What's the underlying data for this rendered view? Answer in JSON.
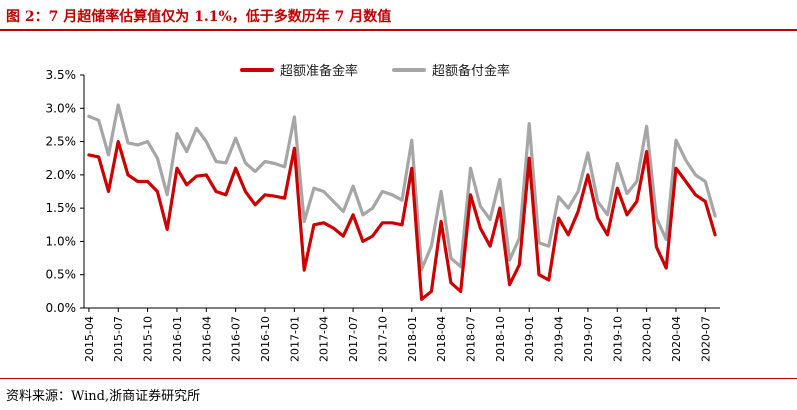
{
  "title": "图 2：7 月超储率估算值仅为 1.1%，低于多数历年 7 月数值",
  "source": "资料来源：Wind,浙商证券研究所",
  "colors": {
    "accent": "#c00000",
    "series_red": "#cc0000",
    "series_gray": "#a6a6a6"
  },
  "chart_data": {
    "type": "line",
    "ylim": [
      0,
      3.5
    ],
    "yticks": [
      "0.0%",
      "0.5%",
      "1.0%",
      "1.5%",
      "2.0%",
      "2.5%",
      "3.0%",
      "3.5%"
    ],
    "ytick_values": [
      0,
      0.5,
      1.0,
      1.5,
      2.0,
      2.5,
      3.0,
      3.5
    ],
    "xtick_labels": [
      "2015-04",
      "2015-07",
      "2015-10",
      "2016-01",
      "2016-04",
      "2016-07",
      "2016-10",
      "2017-01",
      "2017-04",
      "2017-07",
      "2017-10",
      "2018-01",
      "2018-04",
      "2018-07",
      "2018-10",
      "2019-01",
      "2019-04",
      "2019-07",
      "2019-10",
      "2020-01",
      "2020-04",
      "2020-07"
    ],
    "series": [
      {
        "name": "超额准备金率",
        "values": [
          2.3,
          2.27,
          1.75,
          2.5,
          2.0,
          1.9,
          1.9,
          1.75,
          1.18,
          2.1,
          1.85,
          1.98,
          2.0,
          1.75,
          1.7,
          2.1,
          1.75,
          1.55,
          1.7,
          1.68,
          1.65,
          2.4,
          0.57,
          1.25,
          1.28,
          1.2,
          1.08,
          1.4,
          1.0,
          1.08,
          1.28,
          1.28,
          1.25,
          2.1,
          0.13,
          0.25,
          1.3,
          0.38,
          0.25,
          1.7,
          1.2,
          0.93,
          1.5,
          0.35,
          0.65,
          2.25,
          0.5,
          0.42,
          1.35,
          1.1,
          1.45,
          2.0,
          1.35,
          1.1,
          1.8,
          1.4,
          1.6,
          2.35,
          0.92,
          0.6,
          2.1,
          1.9,
          1.7,
          1.6,
          1.1
        ]
      },
      {
        "name": "超额备付金率",
        "values": [
          2.88,
          2.82,
          2.3,
          3.05,
          2.48,
          2.45,
          2.5,
          2.25,
          1.7,
          2.62,
          2.35,
          2.7,
          2.5,
          2.2,
          2.18,
          2.55,
          2.18,
          2.05,
          2.2,
          2.17,
          2.12,
          2.87,
          1.3,
          1.8,
          1.75,
          1.6,
          1.45,
          1.83,
          1.4,
          1.5,
          1.75,
          1.7,
          1.62,
          2.52,
          0.58,
          0.93,
          1.75,
          0.75,
          0.62,
          2.1,
          1.53,
          1.33,
          1.93,
          0.72,
          1.05,
          2.77,
          0.98,
          0.93,
          1.67,
          1.5,
          1.75,
          2.33,
          1.6,
          1.4,
          2.17,
          1.72,
          1.9,
          2.73,
          1.35,
          1.03,
          2.52,
          2.22,
          2.0,
          1.9,
          1.38
        ]
      }
    ]
  }
}
